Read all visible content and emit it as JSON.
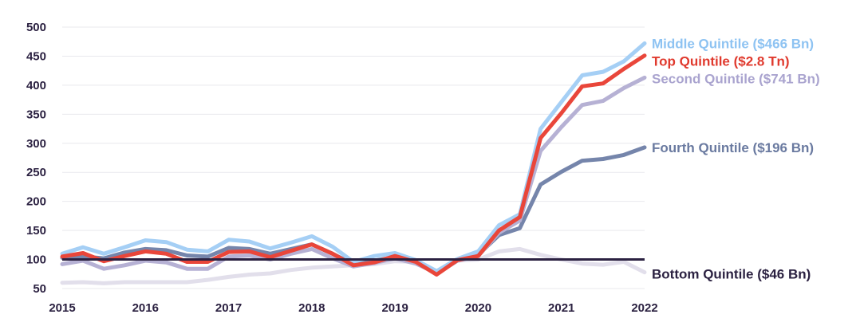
{
  "chart_data": {
    "type": "line",
    "title": "",
    "xlabel": "",
    "ylabel": "",
    "xlim": [
      2015,
      2022
    ],
    "ylim": [
      50,
      500
    ],
    "y_ticks": [
      50,
      100,
      150,
      200,
      250,
      300,
      350,
      400,
      450,
      500
    ],
    "x_ticks": [
      "2015",
      "2016",
      "2017",
      "2018",
      "2019",
      "2020",
      "2021",
      "2022"
    ],
    "grid": "horizontal",
    "reference_line": {
      "y": 100,
      "color": "#2b2141"
    },
    "x": [
      2015.0,
      2015.25,
      2015.5,
      2015.75,
      2016.0,
      2016.25,
      2016.5,
      2016.75,
      2017.0,
      2017.25,
      2017.5,
      2017.75,
      2018.0,
      2018.25,
      2018.5,
      2018.75,
      2019.0,
      2019.25,
      2019.5,
      2019.75,
      2020.0,
      2020.25,
      2020.5,
      2020.75,
      2021.0,
      2021.25,
      2021.5,
      2021.75,
      2022.0
    ],
    "series": [
      {
        "name": "Bottom Quintile ($46 Bn)",
        "color": "#e2dfeb",
        "label_color": "#2b2141",
        "values": [
          60,
          61,
          59,
          61,
          61,
          61,
          61,
          65,
          70,
          74,
          76,
          82,
          86,
          88,
          90,
          92,
          97,
          96,
          80,
          98,
          100,
          114,
          118,
          108,
          100,
          93,
          91,
          96,
          78
        ]
      },
      {
        "name": "Fourth Quintile ($196 Bn)",
        "color": "#7585ab",
        "label_color": "#6a7aa0",
        "values": [
          103,
          105,
          102,
          112,
          118,
          116,
          107,
          105,
          120,
          118,
          110,
          118,
          126,
          110,
          92,
          98,
          104,
          94,
          76,
          98,
          108,
          142,
          154,
          229,
          251,
          270,
          273,
          280,
          293
        ]
      },
      {
        "name": "Second Quintile ($741 Bn)",
        "color": "#b6b1d4",
        "label_color": "#aaa4cf",
        "values": [
          92,
          98,
          84,
          90,
          98,
          95,
          84,
          84,
          105,
          107,
          100,
          110,
          118,
          102,
          88,
          94,
          102,
          93,
          77,
          98,
          106,
          146,
          167,
          287,
          328,
          366,
          373,
          395,
          413
        ]
      },
      {
        "name": "Middle Quintile ($466 Bn)",
        "color": "#a5cff5",
        "label_color": "#8ec3f2",
        "values": [
          110,
          121,
          110,
          121,
          133,
          130,
          117,
          114,
          134,
          131,
          119,
          129,
          140,
          122,
          96,
          106,
          111,
          99,
          80,
          101,
          114,
          159,
          178,
          325,
          371,
          417,
          423,
          441,
          472
        ]
      },
      {
        "name": "Top Quintile ($2.8 Tn)",
        "color": "#e9463a",
        "label_color": "#e03a2e",
        "values": [
          105,
          111,
          97,
          106,
          114,
          110,
          96,
          96,
          113,
          114,
          104,
          115,
          126,
          110,
          90,
          95,
          106,
          96,
          74,
          99,
          106,
          150,
          173,
          309,
          352,
          398,
          403,
          428,
          451
        ]
      }
    ]
  }
}
